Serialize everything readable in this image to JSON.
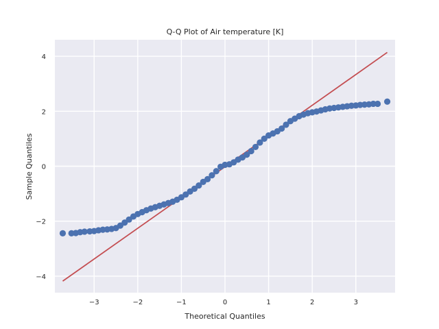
{
  "chart_data": {
    "type": "scatter",
    "title": "Q-Q Plot of Air temperature [K]",
    "xlabel": "Theoretical Quantiles",
    "ylabel": "Sample Quantiles",
    "xlim": [
      -3.9,
      3.9
    ],
    "ylim": [
      -4.6,
      4.6
    ],
    "xticks": [
      -3,
      -2,
      -1,
      0,
      1,
      2,
      3
    ],
    "yticks": [
      -4,
      -2,
      0,
      2,
      4
    ],
    "grid": true,
    "background_color": "#eaeaf2",
    "grid_color": "#ffffff",
    "marker_color": "#4c72b0",
    "line_color": "#c44e52",
    "reference_line": {
      "x": [
        -3.72,
        3.72
      ],
      "y": [
        -4.18,
        4.14
      ]
    },
    "series": [
      {
        "points": [
          [
            -3.72,
            -2.44
          ],
          [
            -3.52,
            -2.44
          ],
          [
            -3.42,
            -2.43
          ],
          [
            -3.32,
            -2.4
          ],
          [
            -3.22,
            -2.38
          ],
          [
            -3.1,
            -2.37
          ],
          [
            -3.0,
            -2.36
          ],
          [
            -2.9,
            -2.33
          ],
          [
            -2.8,
            -2.31
          ],
          [
            -2.7,
            -2.3
          ],
          [
            -2.6,
            -2.28
          ],
          [
            -2.5,
            -2.25
          ],
          [
            -2.4,
            -2.16
          ],
          [
            -2.3,
            -2.05
          ],
          [
            -2.2,
            -1.94
          ],
          [
            -2.1,
            -1.83
          ],
          [
            -2.0,
            -1.74
          ],
          [
            -1.9,
            -1.67
          ],
          [
            -1.8,
            -1.6
          ],
          [
            -1.7,
            -1.54
          ],
          [
            -1.6,
            -1.49
          ],
          [
            -1.5,
            -1.44
          ],
          [
            -1.4,
            -1.39
          ],
          [
            -1.3,
            -1.34
          ],
          [
            -1.2,
            -1.29
          ],
          [
            -1.1,
            -1.22
          ],
          [
            -1.0,
            -1.13
          ],
          [
            -0.9,
            -1.03
          ],
          [
            -0.8,
            -0.92
          ],
          [
            -0.7,
            -0.82
          ],
          [
            -0.6,
            -0.7
          ],
          [
            -0.5,
            -0.57
          ],
          [
            -0.4,
            -0.47
          ],
          [
            -0.3,
            -0.33
          ],
          [
            -0.2,
            -0.18
          ],
          [
            -0.1,
            -0.02
          ],
          [
            0.0,
            0.05
          ],
          [
            0.1,
            0.07
          ],
          [
            0.2,
            0.14
          ],
          [
            0.3,
            0.24
          ],
          [
            0.4,
            0.32
          ],
          [
            0.5,
            0.42
          ],
          [
            0.6,
            0.55
          ],
          [
            0.7,
            0.7
          ],
          [
            0.8,
            0.86
          ],
          [
            0.9,
            1.0
          ],
          [
            1.0,
            1.12
          ],
          [
            1.1,
            1.19
          ],
          [
            1.2,
            1.27
          ],
          [
            1.3,
            1.37
          ],
          [
            1.4,
            1.51
          ],
          [
            1.5,
            1.64
          ],
          [
            1.6,
            1.73
          ],
          [
            1.7,
            1.82
          ],
          [
            1.8,
            1.88
          ],
          [
            1.9,
            1.93
          ],
          [
            2.0,
            1.96
          ],
          [
            2.1,
            1.99
          ],
          [
            2.2,
            2.03
          ],
          [
            2.3,
            2.07
          ],
          [
            2.4,
            2.1
          ],
          [
            2.5,
            2.12
          ],
          [
            2.6,
            2.14
          ],
          [
            2.7,
            2.16
          ],
          [
            2.8,
            2.18
          ],
          [
            2.9,
            2.2
          ],
          [
            3.0,
            2.21
          ],
          [
            3.1,
            2.23
          ],
          [
            3.2,
            2.24
          ],
          [
            3.3,
            2.25
          ],
          [
            3.4,
            2.27
          ],
          [
            3.5,
            2.27
          ],
          [
            3.72,
            2.35
          ]
        ]
      }
    ]
  }
}
